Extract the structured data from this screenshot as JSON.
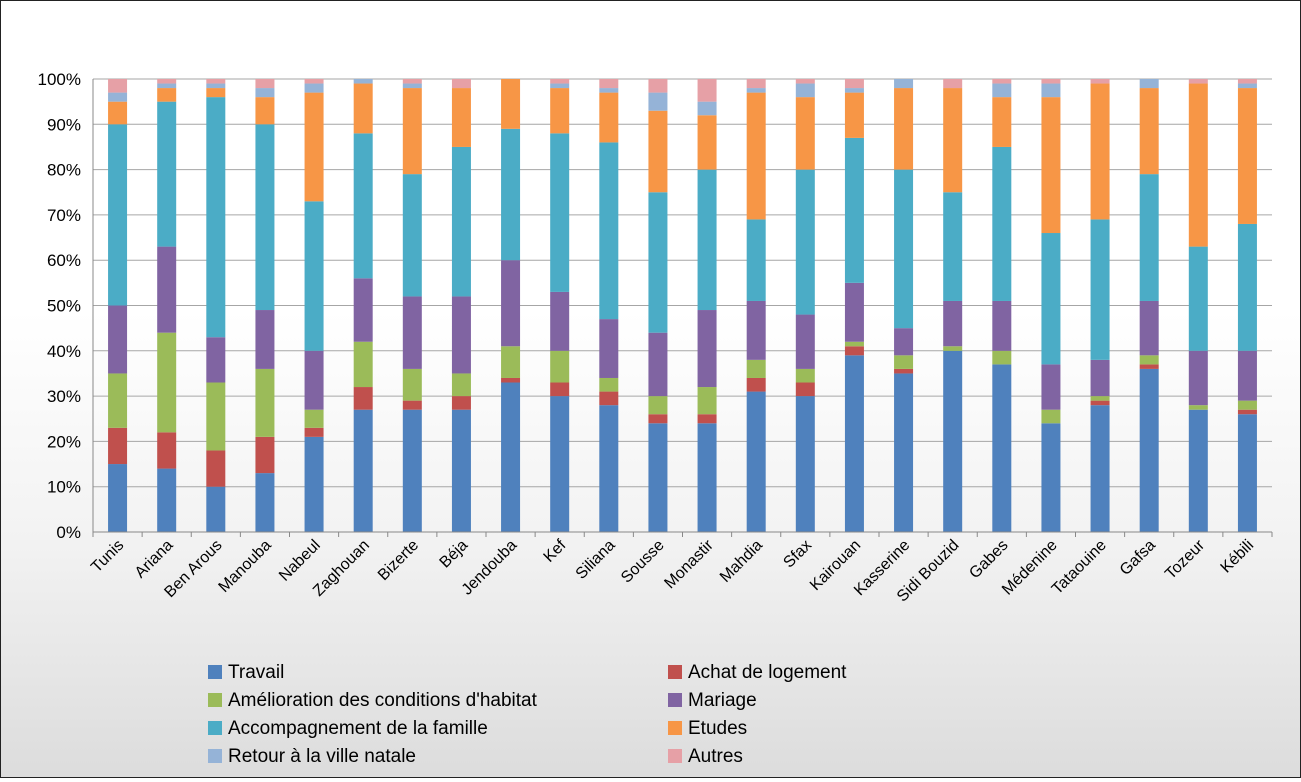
{
  "chart_data": {
    "type": "bar",
    "stacked": true,
    "percent": true,
    "title": "",
    "xlabel": "",
    "ylabel": "",
    "ylim": [
      0,
      100
    ],
    "yticks": [
      "0%",
      "10%",
      "20%",
      "30%",
      "40%",
      "50%",
      "60%",
      "70%",
      "80%",
      "90%",
      "100%"
    ],
    "grid": true,
    "legend_position": "bottom",
    "categories": [
      "Tunis",
      "Ariana",
      "Ben Arous",
      "Manouba",
      "Nabeul",
      "Zaghouan",
      "Bizerte",
      "Béja",
      "Jendouba",
      "Kef",
      "Siliana",
      "Sousse",
      "Monastir",
      "Mahdia",
      "Sfax",
      "Kairouan",
      "Kasserine",
      "Sidi Bouzid",
      "Gabes",
      "Médenine",
      "Tataouine",
      "Gafsa",
      "Tozeur",
      "Kébili"
    ],
    "series": [
      {
        "name": "Travail",
        "color": "#4f81bd",
        "values": [
          15,
          14,
          10,
          13,
          21,
          27,
          27,
          27,
          33,
          30,
          28,
          24,
          24,
          31,
          30,
          39,
          35,
          40,
          37,
          24,
          28,
          36,
          27,
          26
        ]
      },
      {
        "name": "Achat de logement",
        "color": "#c0504d",
        "values": [
          8,
          8,
          8,
          8,
          2,
          5,
          2,
          3,
          1,
          3,
          3,
          2,
          2,
          3,
          3,
          2,
          1,
          0,
          0,
          0,
          1,
          1,
          0,
          1
        ]
      },
      {
        "name": "Amélioration des conditions d'habitat",
        "color": "#9bbb59",
        "values": [
          12,
          22,
          15,
          15,
          4,
          10,
          7,
          5,
          7,
          7,
          3,
          4,
          6,
          4,
          3,
          1,
          3,
          1,
          3,
          3,
          1,
          2,
          1,
          2
        ]
      },
      {
        "name": "Mariage",
        "color": "#8064a2",
        "values": [
          15,
          19,
          10,
          13,
          13,
          14,
          16,
          17,
          19,
          13,
          13,
          14,
          17,
          13,
          12,
          13,
          6,
          10,
          11,
          10,
          8,
          12,
          12,
          11
        ]
      },
      {
        "name": "Accompagnement de la famille",
        "color": "#4bacc6",
        "values": [
          40,
          32,
          53,
          41,
          33,
          32,
          27,
          33,
          29,
          35,
          39,
          31,
          31,
          18,
          32,
          32,
          35,
          24,
          34,
          29,
          31,
          28,
          23,
          28
        ]
      },
      {
        "name": "Etudes",
        "color": "#f79646",
        "values": [
          5,
          3,
          2,
          6,
          24,
          11,
          19,
          13,
          11,
          10,
          11,
          18,
          12,
          28,
          16,
          10,
          18,
          23,
          11,
          30,
          30,
          19,
          36,
          30
        ]
      },
      {
        "name": "Retour à la ville natale",
        "color": "#95b3d7",
        "values": [
          2,
          1,
          1,
          2,
          2,
          1,
          1,
          0,
          0,
          1,
          1,
          4,
          3,
          1,
          3,
          1,
          2,
          0,
          3,
          3,
          0,
          2,
          0,
          1
        ]
      },
      {
        "name": "Autres",
        "color": "#e6a0a6",
        "values": [
          3,
          1,
          1,
          2,
          1,
          0,
          1,
          2,
          0,
          1,
          2,
          3,
          5,
          2,
          1,
          2,
          0,
          2,
          1,
          1,
          1,
          0,
          1,
          1
        ]
      }
    ]
  }
}
